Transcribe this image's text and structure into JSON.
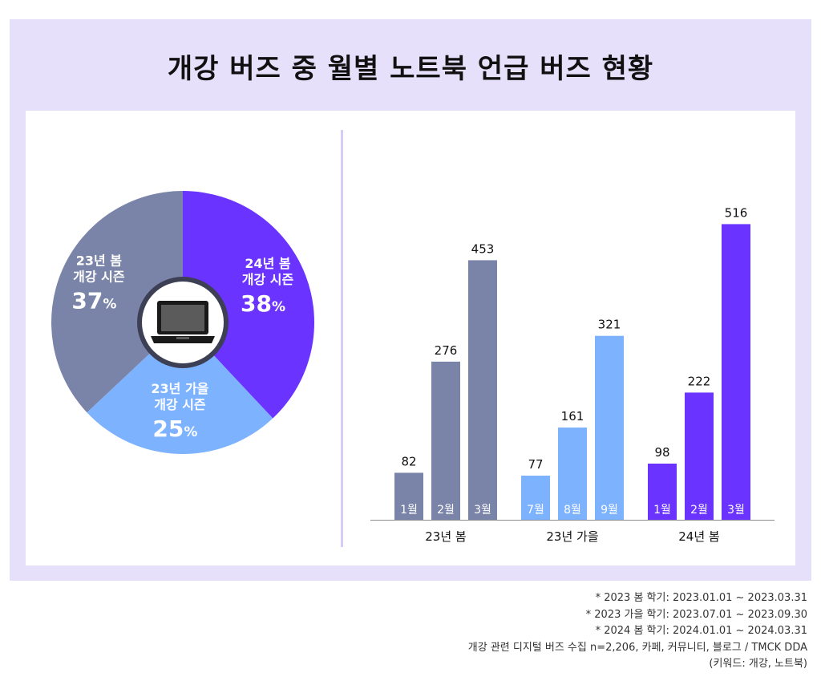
{
  "title": "개강 버즈 중 월별 노트북 언급 버즈 현황",
  "colors": {
    "spring23": "#7a84a8",
    "fall23": "#7db2ff",
    "spring24": "#6a33ff",
    "frame": "#e6e0fb"
  },
  "center_icon": "laptop-icon",
  "chart_data": [
    {
      "type": "pie",
      "title": "",
      "slices": [
        {
          "name": "24년 봄 개강 시즌",
          "line1": "24년 봄",
          "line2": "개강 시즌",
          "value": 38,
          "value_label": "38",
          "unit": "%",
          "color": "#6a33ff"
        },
        {
          "name": "23년 가을 개강 시즌",
          "line1": "23년 가을",
          "line2": "개강 시즌",
          "value": 25,
          "value_label": "25",
          "unit": "%",
          "color": "#7db2ff"
        },
        {
          "name": "23년 봄 개강 시즌",
          "line1": "23년 봄",
          "line2": "개강 시즌",
          "value": 37,
          "value_label": "37",
          "unit": "%",
          "color": "#7a84a8"
        }
      ]
    },
    {
      "type": "bar",
      "ylim": [
        0,
        560
      ],
      "groups": [
        {
          "label": "23년 봄",
          "color": "#7a84a8",
          "bars": [
            {
              "month": "1월",
              "value": 82
            },
            {
              "month": "2월",
              "value": 276
            },
            {
              "month": "3월",
              "value": 453
            }
          ]
        },
        {
          "label": "23년 가을",
          "color": "#7db2ff",
          "bars": [
            {
              "month": "7월",
              "value": 77
            },
            {
              "month": "8월",
              "value": 161
            },
            {
              "month": "9월",
              "value": 321
            }
          ]
        },
        {
          "label": "24년 봄",
          "color": "#6a33ff",
          "bars": [
            {
              "month": "1월",
              "value": 98
            },
            {
              "month": "2월",
              "value": 222
            },
            {
              "month": "3월",
              "value": 516
            }
          ]
        }
      ]
    }
  ],
  "footnotes": [
    "* 2023 봄 학기: 2023.01.01 ~ 2023.03.31",
    "* 2023 가을 학기: 2023.07.01 ~ 2023.09.30",
    "* 2024 봄 학기: 2024.01.01 ~ 2024.03.31",
    "개강 관련 디지털 버즈 수집 n=2,206, 카페, 커뮤니티, 블로그 / TMCK DDA",
    "(키워드: 개강, 노트북)"
  ]
}
